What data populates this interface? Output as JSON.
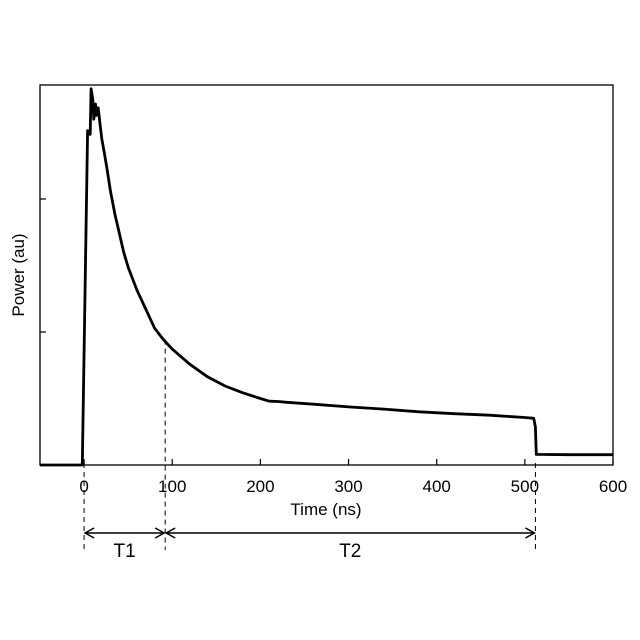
{
  "chart_data": {
    "type": "line",
    "title": "",
    "xlabel": "Time (ns)",
    "ylabel": "Power (au)",
    "xlim": [
      -50,
      600
    ],
    "ylim": [
      0,
      1
    ],
    "grid": false,
    "legend": "none",
    "x_ticks": [
      0,
      100,
      200,
      300,
      400,
      500,
      600
    ],
    "y_ticks": [
      0.35,
      0.7
    ],
    "line_color": "#000000",
    "series": [
      {
        "x": [
          -50,
          -2,
          4,
          7,
          8,
          10,
          11,
          13,
          14,
          16,
          18,
          20,
          23,
          26,
          30,
          35,
          40,
          45,
          50,
          60,
          70,
          80,
          90,
          100,
          120,
          140,
          160,
          180,
          200,
          210,
          220,
          230,
          260,
          300,
          340,
          380,
          420,
          460,
          480,
          500,
          510,
          512,
          513,
          550,
          600
        ],
        "y": [
          0,
          0,
          0.88,
          0.87,
          0.99,
          0.96,
          0.91,
          0.95,
          0.92,
          0.94,
          0.9,
          0.86,
          0.82,
          0.78,
          0.72,
          0.66,
          0.61,
          0.56,
          0.52,
          0.46,
          0.41,
          0.36,
          0.33,
          0.305,
          0.265,
          0.232,
          0.208,
          0.19,
          0.175,
          0.168,
          0.167,
          0.165,
          0.16,
          0.153,
          0.147,
          0.14,
          0.135,
          0.131,
          0.128,
          0.125,
          0.123,
          0.1,
          0.028,
          0.027,
          0.027
        ]
      }
    ],
    "annotations": [
      {
        "label": "T1",
        "from": 0,
        "to": 92
      },
      {
        "label": "T2",
        "from": 92,
        "to": 512
      }
    ]
  }
}
